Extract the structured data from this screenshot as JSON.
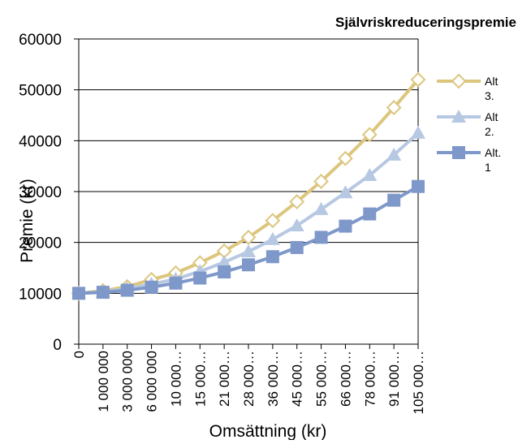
{
  "chart_data": {
    "type": "line",
    "title": "Självriskreduceringspremie",
    "xlabel": "Omsättning (kr)",
    "ylabel": "Premie (kr)",
    "ylim": [
      0,
      60000
    ],
    "yticks": [
      "0",
      "10000",
      "20000",
      "30000",
      "40000",
      "50000",
      "60000"
    ],
    "categories": [
      "0",
      "1 000 000",
      "3 000 000",
      "6 000 000",
      "10 000…",
      "15 000…",
      "21 000…",
      "28 000…",
      "36 000…",
      "45 000…",
      "55 000…",
      "66 000…",
      "78 000…",
      "91 000…",
      "105 000…"
    ],
    "grid": "horizontal",
    "legend_position": "right",
    "series": [
      {
        "name": "Alt 3.",
        "color": "#DCC67E",
        "marker": "diamond-open",
        "values": [
          10000,
          10500,
          11300,
          12700,
          14000,
          16000,
          18300,
          21000,
          24300,
          28000,
          32000,
          36500,
          41200,
          46500,
          52000
        ]
      },
      {
        "name": "Alt 2.",
        "color": "#B7C8E3",
        "marker": "triangle",
        "values": [
          10000,
          10300,
          10900,
          11800,
          12800,
          14300,
          16100,
          18200,
          20600,
          23300,
          26500,
          29800,
          33200,
          37200,
          41500
        ]
      },
      {
        "name": "Alt. 1",
        "color": "#7F98CA",
        "marker": "square",
        "values": [
          10000,
          10200,
          10600,
          11200,
          12000,
          13000,
          14200,
          15600,
          17200,
          19000,
          21000,
          23200,
          25600,
          28300,
          31000
        ]
      }
    ]
  }
}
